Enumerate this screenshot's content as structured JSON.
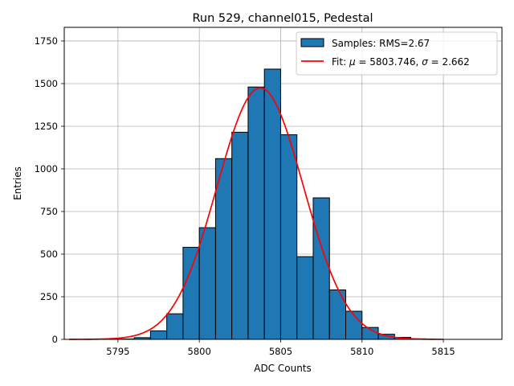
{
  "chart_data": {
    "type": "bar",
    "title": "Run 529, channel015, Pedestal",
    "xlabel": "ADC Counts",
    "ylabel": "Entries",
    "xlim": [
      5791.7,
      5818.6
    ],
    "ylim": [
      0,
      1830
    ],
    "xticks": [
      5795,
      5800,
      5805,
      5810,
      5815
    ],
    "yticks": [
      0,
      250,
      500,
      750,
      1000,
      1250,
      1500,
      1750
    ],
    "grid": true,
    "legend_position": "top-right",
    "bin_width": 1,
    "bins": [
      {
        "left": 5795,
        "count": 2
      },
      {
        "left": 5796,
        "count": 10
      },
      {
        "left": 5797,
        "count": 50
      },
      {
        "left": 5798,
        "count": 150
      },
      {
        "left": 5799,
        "count": 540
      },
      {
        "left": 5800,
        "count": 655
      },
      {
        "left": 5801,
        "count": 1060
      },
      {
        "left": 5802,
        "count": 1215
      },
      {
        "left": 5803,
        "count": 1480
      },
      {
        "left": 5804,
        "count": 1585
      },
      {
        "left": 5805,
        "count": 1200
      },
      {
        "left": 5806,
        "count": 485
      },
      {
        "left": 5807,
        "count": 830
      },
      {
        "left": 5808,
        "count": 290
      },
      {
        "left": 5809,
        "count": 165
      },
      {
        "left": 5810,
        "count": 70
      },
      {
        "left": 5811,
        "count": 30
      },
      {
        "left": 5812,
        "count": 12
      },
      {
        "left": 5813,
        "count": 3
      }
    ],
    "fit": {
      "mu": 5803.746,
      "sigma": 2.662,
      "amplitude": 1475,
      "x_range": [
        5792,
        5815
      ]
    },
    "series": [
      {
        "name": "Samples: RMS=2.67",
        "color": "#1f77b4"
      },
      {
        "name_prefix": "Fit: ",
        "mu_symbol": "μ",
        "mu_text": " = 5803.746, ",
        "sigma_symbol": "σ",
        "sigma_text": " = 2.662",
        "color": "#ff0000"
      }
    ]
  }
}
